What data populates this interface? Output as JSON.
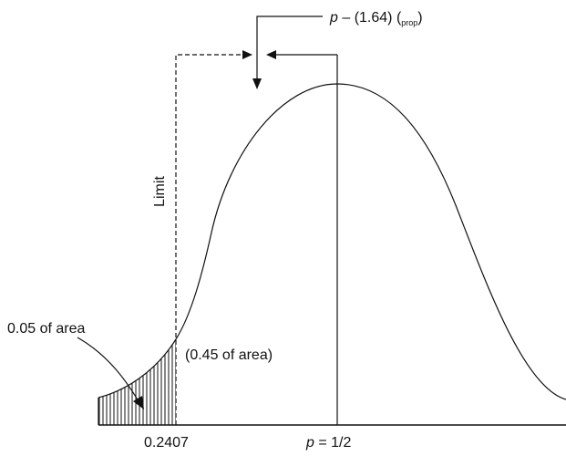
{
  "diagram": {
    "top_formula": {
      "p": "p",
      "rest": " – (1.64) (",
      "sub": "prop",
      "close": ")"
    },
    "limit_label": "Limit",
    "left_area_label": "0.05 of area",
    "middle_area_label": "(0.45 of area)",
    "x_tick_limit": "0.2407",
    "x_tick_center": {
      "p": "p",
      "rest": " = 1/2"
    },
    "colors": {
      "line": "#111111",
      "background": "#ffffff"
    }
  }
}
